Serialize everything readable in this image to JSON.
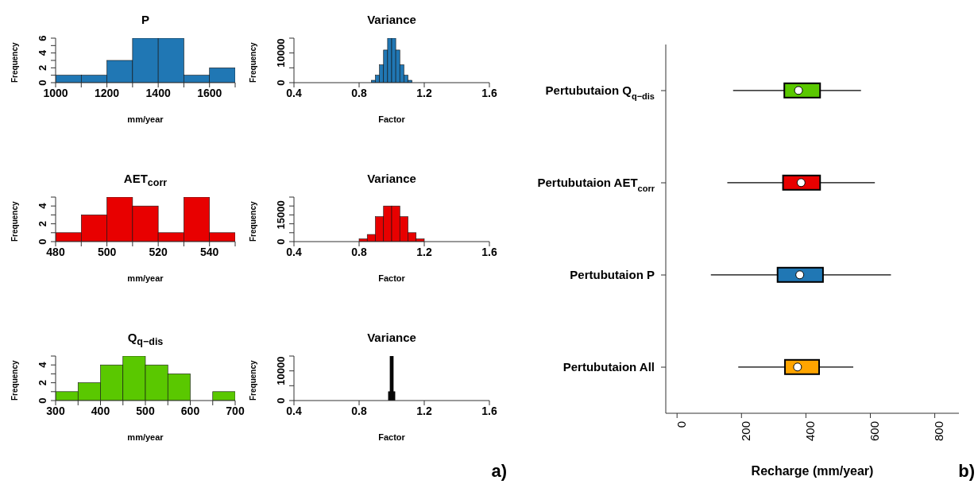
{
  "chart_data": [
    {
      "type": "histogram",
      "title": "P",
      "xlabel": "mm/year",
      "ylabel": "Frequency",
      "bins": [
        1000,
        1100,
        1200,
        1300,
        1400,
        1500,
        1600,
        1700
      ],
      "values": [
        1,
        1,
        3,
        6,
        6,
        1,
        2
      ],
      "color": "#2077b4",
      "xlim": [
        1000,
        1700
      ],
      "xticks": [
        1000,
        {
          "value": 1100,
          "label": null
        },
        1200,
        {
          "value": 1300,
          "label": null
        },
        1400,
        {
          "value": 1500,
          "label": null
        },
        1600,
        {
          "value": 1700,
          "label": null
        }
      ],
      "ylim": [
        0,
        6
      ],
      "yticks": [
        0,
        {
          "value": 1,
          "label": null
        },
        2,
        {
          "value": 3,
          "label": null
        },
        4,
        {
          "value": 5,
          "label": null
        },
        6
      ]
    },
    {
      "type": "histogram",
      "title": "Variance",
      "xlabel": "Factor",
      "ylabel": "Frequency",
      "bins": [
        0.875,
        0.9,
        0.925,
        0.95,
        0.975,
        1.0,
        1.025,
        1.05,
        1.075,
        1.1,
        1.125
      ],
      "values": [
        800,
        2500,
        6000,
        11000,
        15000,
        15000,
        11000,
        6000,
        2500,
        800
      ],
      "color": "#2077b4",
      "xlim": [
        0.4,
        1.6
      ],
      "xticks": [
        0.4,
        0.8,
        1.2,
        1.6
      ],
      "ylim": [
        0,
        15000
      ],
      "yticks": [
        0,
        {
          "value": 5000,
          "label": null
        },
        10000,
        {
          "value": 15000,
          "label": null
        }
      ]
    },
    {
      "type": "histogram",
      "title": "AET$_{corr}$",
      "xlabel": "mm/year",
      "ylabel": "Frequency",
      "bins": [
        480,
        490,
        500,
        510,
        520,
        530,
        540,
        550
      ],
      "values": [
        1,
        3,
        5,
        4,
        1,
        5,
        1
      ],
      "color": "#e80000",
      "xlim": [
        480,
        550
      ],
      "xticks": [
        480,
        {
          "value": 490,
          "label": null
        },
        500,
        {
          "value": 510,
          "label": null
        },
        520,
        {
          "value": 530,
          "label": null
        },
        540,
        {
          "value": 550,
          "label": null
        }
      ],
      "ylim": [
        0,
        5
      ],
      "yticks": [
        0,
        {
          "value": 1,
          "label": null
        },
        2,
        {
          "value": 3,
          "label": null
        },
        4,
        {
          "value": 5,
          "label": null
        }
      ]
    },
    {
      "type": "histogram",
      "title": "Variance",
      "xlabel": "Factor",
      "ylabel": "Frequency",
      "bins": [
        0.8,
        0.85,
        0.9,
        0.95,
        1.0,
        1.05,
        1.1,
        1.15,
        1.2
      ],
      "values": [
        1500,
        4000,
        14000,
        20000,
        20000,
        14000,
        5000,
        1500
      ],
      "color": "#e80000",
      "xlim": [
        0.4,
        1.6
      ],
      "xticks": [
        0.4,
        0.8,
        1.2,
        1.6
      ],
      "ylim": [
        0,
        25000
      ],
      "yticks": [
        0,
        {
          "value": 5000,
          "label": null
        },
        {
          "value": 10000,
          "label": null
        },
        15000,
        {
          "value": 20000,
          "label": null
        },
        {
          "value": 25000,
          "label": null
        }
      ]
    },
    {
      "type": "histogram",
      "title": "Q$_{q−dis}$",
      "xlabel": "mm/year",
      "ylabel": "Frequency",
      "bins": [
        300,
        350,
        400,
        450,
        500,
        550,
        600,
        650,
        700
      ],
      "values": [
        1,
        2,
        4,
        5,
        4,
        3,
        0,
        1
      ],
      "color": "#5ac800",
      "xlim": [
        300,
        700
      ],
      "xticks": [
        300,
        {
          "value": 350,
          "label": null
        },
        400,
        {
          "value": 450,
          "label": null
        },
        500,
        {
          "value": 550,
          "label": null
        },
        600,
        {
          "value": 650,
          "label": null
        },
        700
      ],
      "ylim": [
        0,
        5
      ],
      "yticks": [
        0,
        {
          "value": 1,
          "label": null
        },
        2,
        {
          "value": 3,
          "label": null
        },
        4,
        {
          "value": 5,
          "label": null
        }
      ]
    },
    {
      "type": "histogram",
      "title": "Variance",
      "xlabel": "Factor",
      "ylabel": "Frequency",
      "bins": [
        0.98,
        0.99,
        1.0,
        1.01,
        1.02
      ],
      "values": [
        3000,
        15000,
        15000,
        3000
      ],
      "color": "#000000",
      "xlim": [
        0.4,
        1.6
      ],
      "xticks": [
        0.4,
        0.8,
        1.2,
        1.6
      ],
      "ylim": [
        0,
        15000
      ],
      "yticks": [
        0,
        {
          "value": 5000,
          "label": null
        },
        10000,
        {
          "value": 15000,
          "label": null
        }
      ],
      "annotations": [
        "a)"
      ]
    },
    {
      "type": "box",
      "orientation": "horizontal",
      "xlabel": "Recharge (mm/year)",
      "categories": [
        "Pertubutaion Q$_{q−dis}$",
        "Pertubutaion AET$_{corr}$",
        "Pertubutaion P",
        "Pertubutaion All"
      ],
      "colors": [
        "#5ac800",
        "#e80000",
        "#2077b4",
        "#ffa500"
      ],
      "boxes": [
        {
          "low": 174,
          "q1": 333,
          "median": 377,
          "q3": 444,
          "high": 571
        },
        {
          "low": 156,
          "q1": 329,
          "median": 385,
          "q3": 444,
          "high": 614
        },
        {
          "low": 105,
          "q1": 312,
          "median": 381,
          "q3": 453,
          "high": 664
        },
        {
          "low": 190,
          "q1": 335,
          "median": 374,
          "q3": 441,
          "high": 547
        }
      ],
      "xlim": [
        -35,
        875
      ],
      "xticks": [
        0,
        200,
        400,
        600,
        800
      ],
      "annotations": [
        "b)"
      ]
    }
  ]
}
